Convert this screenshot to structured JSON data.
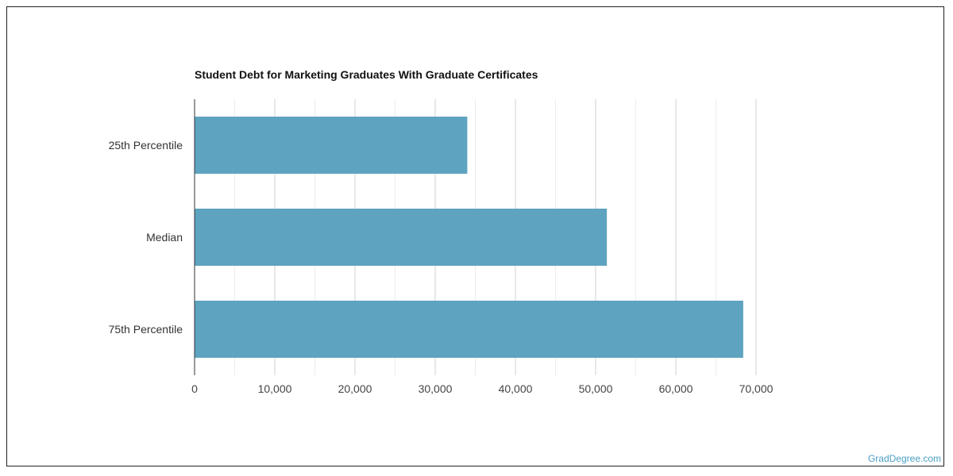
{
  "chart_data": {
    "type": "bar",
    "orientation": "horizontal",
    "title": "Student Debt for Marketing Graduates With Graduate Certificates",
    "categories": [
      "25th Percentile",
      "Median",
      "75th Percentile"
    ],
    "values": [
      34000,
      51400,
      68400
    ],
    "xlim": [
      0,
      70000
    ],
    "x_ticks": [
      0,
      10000,
      20000,
      30000,
      40000,
      50000,
      60000,
      70000
    ],
    "x_tick_labels": [
      "0",
      "10,000",
      "20,000",
      "30,000",
      "40,000",
      "50,000",
      "60,000",
      "70,000"
    ],
    "grid": true,
    "bar_color": "#5ea3bf",
    "grid_color": "#dddddd",
    "legend": "none"
  },
  "credit": "GradDegree.com"
}
